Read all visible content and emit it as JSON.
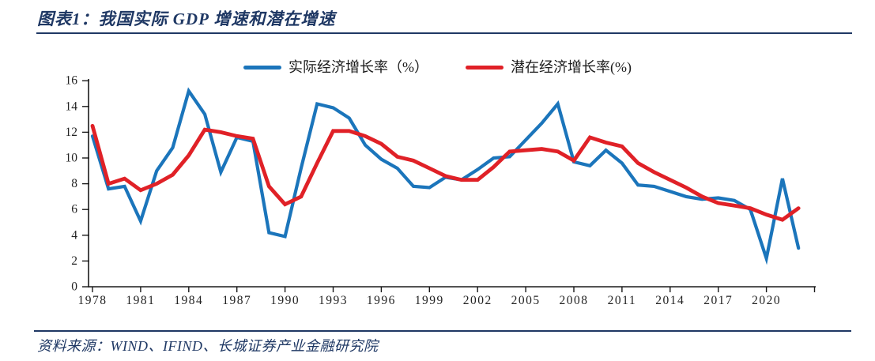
{
  "header": {
    "title": "图表1：我国实际 GDP 增速和潜在增速"
  },
  "legend": [
    {
      "label": "实际经济增长率（%）",
      "color": "#1b75bb"
    },
    {
      "label": "潜在经济增长率(%)",
      "color": "#e02127"
    }
  ],
  "footer": {
    "source": "资料来源：WIND、IFIND、长城证券产业金融研究院"
  },
  "colors": {
    "accent": "#1f3864",
    "actual_line": "#1b75bb",
    "potential_line": "#e02127",
    "axis": "#1a1a1a",
    "tick_label": "#222222"
  },
  "chart_data": {
    "type": "line",
    "title": "我国实际GDP增速和潜在增速",
    "xlabel": "",
    "ylabel": "",
    "ylim": [
      0,
      16
    ],
    "yticks": [
      0,
      2,
      4,
      6,
      8,
      10,
      12,
      14,
      16
    ],
    "xtick_years": [
      1978,
      1981,
      1984,
      1987,
      1990,
      1993,
      1996,
      1999,
      2002,
      2005,
      2008,
      2011,
      2014,
      2017,
      2020
    ],
    "xaxis_end_year": 2023,
    "grid": false,
    "legend_position": "top-center",
    "x": [
      1978,
      1979,
      1980,
      1981,
      1982,
      1983,
      1984,
      1985,
      1986,
      1987,
      1988,
      1989,
      1990,
      1991,
      1992,
      1993,
      1994,
      1995,
      1996,
      1997,
      1998,
      1999,
      2000,
      2001,
      2002,
      2003,
      2004,
      2005,
      2006,
      2007,
      2008,
      2009,
      2010,
      2011,
      2012,
      2013,
      2014,
      2015,
      2016,
      2017,
      2018,
      2019,
      2020,
      2021,
      2022
    ],
    "series": [
      {
        "name": "实际经济增长率（%）",
        "color": "#1b75bb",
        "values": [
          11.7,
          7.6,
          7.8,
          5.1,
          9.0,
          10.8,
          15.2,
          13.4,
          8.9,
          11.6,
          11.3,
          4.2,
          3.9,
          9.2,
          14.2,
          13.9,
          13.1,
          11.0,
          9.9,
          9.2,
          7.8,
          7.7,
          8.5,
          8.3,
          9.1,
          10.0,
          10.1,
          11.4,
          12.7,
          14.2,
          9.7,
          9.4,
          10.6,
          9.6,
          7.9,
          7.8,
          7.4,
          7.0,
          6.8,
          6.9,
          6.7,
          6.0,
          2.2,
          8.4,
          3.0
        ]
      },
      {
        "name": "潜在经济增长率(%)",
        "color": "#e02127",
        "values": [
          12.5,
          8.0,
          8.4,
          7.5,
          8.0,
          8.7,
          10.2,
          12.2,
          12.0,
          11.7,
          11.5,
          7.8,
          6.4,
          7.0,
          9.6,
          12.1,
          12.1,
          11.7,
          11.1,
          10.1,
          9.8,
          9.2,
          8.6,
          8.3,
          8.3,
          9.3,
          10.5,
          10.6,
          10.7,
          10.5,
          9.8,
          11.6,
          11.2,
          10.9,
          9.6,
          8.9,
          8.3,
          7.7,
          7.0,
          6.5,
          6.3,
          6.1,
          5.6,
          5.2,
          6.1
        ]
      }
    ]
  }
}
